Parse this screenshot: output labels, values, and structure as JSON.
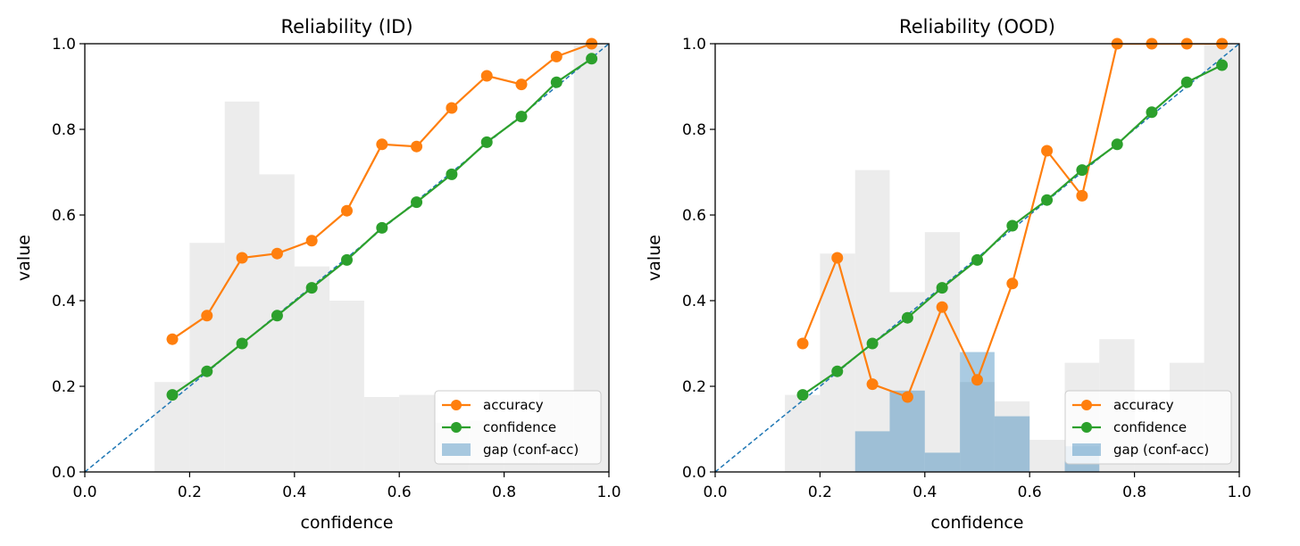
{
  "chart_data": [
    {
      "type": "line",
      "title": "Reliability (ID)",
      "xlabel": "confidence",
      "ylabel": "value",
      "xlim": [
        0.0,
        1.0
      ],
      "ylim": [
        0.0,
        1.0
      ],
      "xticks": [
        "0.0",
        "0.2",
        "0.4",
        "0.6",
        "0.8",
        "1.0"
      ],
      "yticks": [
        "0.0",
        "0.2",
        "0.4",
        "0.6",
        "0.8",
        "1.0"
      ],
      "x": [
        0.167,
        0.233,
        0.3,
        0.367,
        0.433,
        0.5,
        0.567,
        0.633,
        0.7,
        0.767,
        0.833,
        0.9,
        0.967
      ],
      "series": [
        {
          "name": "accuracy",
          "color": "#ff7f0e",
          "values": [
            0.31,
            0.365,
            0.5,
            0.51,
            0.54,
            0.61,
            0.765,
            0.76,
            0.85,
            0.925,
            0.905,
            0.97,
            1.0
          ]
        },
        {
          "name": "confidence",
          "color": "#2ca02c",
          "values": [
            0.18,
            0.235,
            0.3,
            0.365,
            0.43,
            0.495,
            0.57,
            0.63,
            0.695,
            0.77,
            0.83,
            0.91,
            0.965
          ]
        }
      ],
      "gap": {
        "name": "gap (conf-acc)",
        "color": "#1f77b4",
        "bars": []
      },
      "diagonal": {
        "color": "#1f77b4",
        "style": "dashed"
      },
      "histogram": {
        "color": "#e6e6e6",
        "bin_edges": [
          0.133,
          0.2,
          0.267,
          0.333,
          0.4,
          0.467,
          0.533,
          0.6,
          0.667,
          0.733,
          0.8,
          0.867,
          0.933,
          1.0
        ],
        "heights": [
          0.21,
          0.535,
          0.865,
          0.695,
          0.48,
          0.4,
          0.175,
          0.18,
          0.115,
          0.12,
          0.1,
          0.19,
          1.0
        ]
      },
      "legend": {
        "position": "lower-right",
        "entries": [
          "accuracy",
          "confidence",
          "gap (conf-acc)"
        ]
      }
    },
    {
      "type": "line",
      "title": "Reliability (OOD)",
      "xlabel": "confidence",
      "ylabel": "value",
      "xlim": [
        0.0,
        1.0
      ],
      "ylim": [
        0.0,
        1.0
      ],
      "xticks": [
        "0.0",
        "0.2",
        "0.4",
        "0.6",
        "0.8",
        "1.0"
      ],
      "yticks": [
        "0.0",
        "0.2",
        "0.4",
        "0.6",
        "0.8",
        "1.0"
      ],
      "x": [
        0.167,
        0.233,
        0.3,
        0.367,
        0.433,
        0.5,
        0.567,
        0.633,
        0.7,
        0.767,
        0.833,
        0.9,
        0.967
      ],
      "series": [
        {
          "name": "accuracy",
          "color": "#ff7f0e",
          "values": [
            0.3,
            0.5,
            0.205,
            0.175,
            0.385,
            0.215,
            0.44,
            0.75,
            0.645,
            1.0,
            1.0,
            1.0,
            1.0
          ]
        },
        {
          "name": "confidence",
          "color": "#2ca02c",
          "values": [
            0.18,
            0.235,
            0.3,
            0.36,
            0.43,
            0.495,
            0.575,
            0.635,
            0.705,
            0.765,
            0.84,
            0.91,
            0.95
          ]
        }
      ],
      "gap": {
        "name": "gap (conf-acc)",
        "color": "#1f77b4",
        "bars": [
          {
            "x0": 0.267,
            "x1": 0.333,
            "value": 0.095
          },
          {
            "x0": 0.333,
            "x1": 0.4,
            "value": 0.19
          },
          {
            "x0": 0.4,
            "x1": 0.467,
            "value": 0.045
          },
          {
            "x0": 0.467,
            "x1": 0.533,
            "value": 0.28
          },
          {
            "x0": 0.533,
            "x1": 0.6,
            "value": 0.13
          },
          {
            "x0": 0.667,
            "x1": 0.733,
            "value": 0.06
          }
        ]
      },
      "diagonal": {
        "color": "#1f77b4",
        "style": "dashed"
      },
      "histogram": {
        "color": "#e6e6e6",
        "bin_edges": [
          0.133,
          0.2,
          0.267,
          0.333,
          0.4,
          0.467,
          0.533,
          0.6,
          0.667,
          0.733,
          0.8,
          0.867,
          0.933,
          1.0
        ],
        "heights": [
          0.18,
          0.51,
          0.705,
          0.42,
          0.56,
          0.21,
          0.165,
          0.075,
          0.255,
          0.31,
          0.1,
          0.255,
          1.0
        ]
      },
      "legend": {
        "position": "lower-right",
        "entries": [
          "accuracy",
          "confidence",
          "gap (conf-acc)"
        ]
      }
    }
  ]
}
